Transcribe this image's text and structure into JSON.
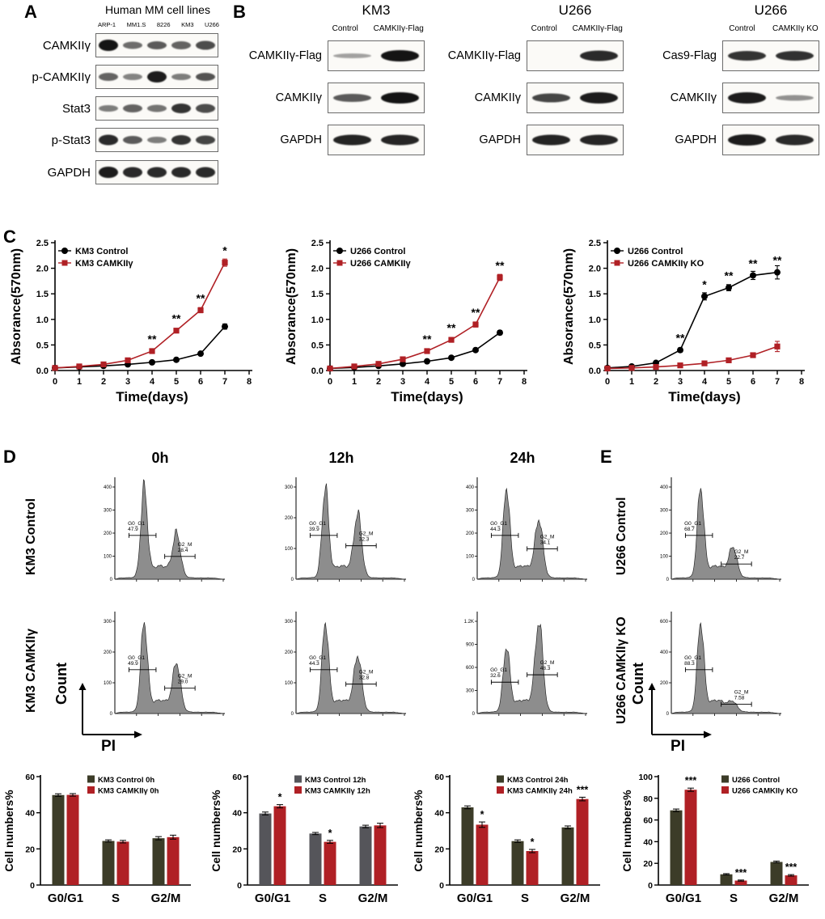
{
  "figure": {
    "panel_a": {
      "label": "A",
      "title": "Human MM cell lines",
      "lanes": [
        "ARP-1",
        "MM1.S",
        "8226",
        "KM3",
        "U266"
      ],
      "rows": [
        {
          "name": "CAMKIIγ",
          "bands": [
            1.0,
            0.45,
            0.55,
            0.5,
            0.65
          ]
        },
        {
          "name": "p-CAMKIIγ",
          "bands": [
            0.5,
            0.3,
            0.95,
            0.35,
            0.6
          ]
        },
        {
          "name": "Stat3",
          "bands": [
            0.35,
            0.5,
            0.4,
            0.8,
            0.65
          ]
        },
        {
          "name": "p-Stat3",
          "bands": [
            0.85,
            0.55,
            0.35,
            0.8,
            0.7
          ]
        },
        {
          "name": "GAPDH",
          "bands": [
            0.95,
            0.85,
            0.85,
            0.85,
            0.85
          ]
        }
      ]
    },
    "panel_b": {
      "label": "B",
      "groups": [
        {
          "title": "KM3",
          "lanes": [
            "Control",
            "CAMKIIγ-Flag"
          ],
          "rows": [
            {
              "name": "CAMKIIγ-Flag",
              "bands": [
                0.12,
                1.0
              ]
            },
            {
              "name": "CAMKIIγ",
              "bands": [
                0.55,
                1.0
              ]
            },
            {
              "name": "GAPDH",
              "bands": [
                0.9,
                0.88
              ]
            }
          ]
        },
        {
          "title": "U266",
          "lanes": [
            "Control",
            "CAMKIIγ-Flag"
          ],
          "rows": [
            {
              "name": "CAMKIIγ-Flag",
              "bands": [
                0,
                0.85
              ]
            },
            {
              "name": "CAMKIIγ",
              "bands": [
                0.68,
                0.95
              ]
            },
            {
              "name": "GAPDH",
              "bands": [
                0.9,
                0.88
              ]
            }
          ]
        },
        {
          "title": "U266",
          "lanes": [
            "Control",
            "CAMKIIγ KO"
          ],
          "rows": [
            {
              "name": "Cas9-Flag",
              "bands": [
                0.8,
                0.82
              ]
            },
            {
              "name": "CAMKIIγ",
              "bands": [
                0.95,
                0.22
              ]
            },
            {
              "name": "GAPDH",
              "bands": [
                0.95,
                0.85
              ]
            }
          ]
        }
      ]
    },
    "panel_c": {
      "label": "C"
    },
    "panel_d": {
      "label": "D",
      "col_headers": [
        "0h",
        "12h",
        "24h"
      ],
      "row_labels": [
        "KM3 Control",
        "KM3 CAMKIIγ"
      ],
      "count_label": "Count",
      "pi_label": "PI",
      "gate_g1": "G0_G1",
      "gate_g2": "G2_M",
      "plots": [
        [
          {
            "g1": "47.9",
            "g2": "28.4",
            "g1h": 0.95,
            "g2h": 0.45,
            "yt": [
              "100",
              "200",
              "300",
              "400"
            ]
          },
          {
            "g1": "39.9",
            "g2": "32.3",
            "g1h": 0.95,
            "g2h": 0.66,
            "yt": [
              "100",
              "200",
              "300"
            ]
          },
          {
            "g1": "44.3",
            "g2": "34.1",
            "g1h": 0.95,
            "g2h": 0.6,
            "yt": [
              "100",
              "200",
              "300",
              "400"
            ]
          }
        ],
        [
          {
            "g1": "49.9",
            "g2": "29.0",
            "g1h": 0.95,
            "g2h": 0.5,
            "yt": [
              "100",
              "200",
              "300"
            ]
          },
          {
            "g1": "44.3",
            "g2": "32.8",
            "g1h": 0.95,
            "g2h": 0.58,
            "yt": [
              "100",
              "200",
              "300"
            ]
          },
          {
            "g1": "32.6",
            "g2": "48.3",
            "g1h": 0.68,
            "g2h": 0.95,
            "yt": [
              "300",
              "600",
              "900",
              "1.2K"
            ]
          }
        ]
      ]
    },
    "panel_e": {
      "label": "E",
      "row_labels": [
        "U266 Control",
        "U266 CAMKIIγ KO"
      ],
      "count_label": "Count",
      "pi_label": "PI",
      "gate_g1": "G0_G1",
      "gate_g2": "G2_M",
      "plots": [
        {
          "g1": "68.7",
          "g2": "22.7",
          "g1h": 0.95,
          "g2h": 0.3,
          "yt": [
            "100",
            "200",
            "300",
            "400"
          ]
        },
        {
          "g1": "88.3",
          "g2": "7.58",
          "g1h": 0.95,
          "g2h": 0.08,
          "yt": [
            "200",
            "400",
            "600"
          ]
        }
      ]
    }
  },
  "chart_data": [
    {
      "type": "line",
      "name": "km3-growth",
      "ylabel": "Absorance(570nm)",
      "xlabel": "Time(days)",
      "ylim": [
        0,
        2.5
      ],
      "yticks": [
        0,
        0.5,
        1,
        1.5,
        2,
        2.5
      ],
      "xlim": [
        0,
        8
      ],
      "xticks": [
        0,
        1,
        2,
        3,
        4,
        5,
        6,
        7,
        8
      ],
      "x": [
        0,
        1,
        2,
        3,
        4,
        5,
        6,
        7
      ],
      "series": [
        {
          "name": "KM3 Control",
          "color": "#000000",
          "marker": "circle",
          "values": [
            0.05,
            0.07,
            0.09,
            0.12,
            0.16,
            0.21,
            0.33,
            0.86
          ],
          "err": [
            0,
            0,
            0,
            0,
            0.02,
            0.02,
            0.03,
            0.05
          ]
        },
        {
          "name": "KM3 CAMKIIγ",
          "color": "#b02025",
          "marker": "square",
          "values": [
            0.05,
            0.08,
            0.12,
            0.2,
            0.38,
            0.78,
            1.18,
            2.11
          ],
          "err": [
            0,
            0,
            0,
            0.02,
            0.03,
            0.04,
            0.05,
            0.07
          ]
        }
      ],
      "sig": [
        {
          "x": 4,
          "s": "**"
        },
        {
          "x": 5,
          "s": "**"
        },
        {
          "x": 6,
          "s": "**"
        },
        {
          "x": 7,
          "s": "*"
        }
      ]
    },
    {
      "type": "line",
      "name": "u266-growth",
      "ylabel": "Absorance(570nm)",
      "xlabel": "Time(days)",
      "ylim": [
        0,
        2.5
      ],
      "yticks": [
        0,
        0.5,
        1,
        1.5,
        2,
        2.5
      ],
      "xlim": [
        0,
        8
      ],
      "xticks": [
        0,
        1,
        2,
        3,
        4,
        5,
        6,
        7,
        8
      ],
      "x": [
        0,
        1,
        2,
        3,
        4,
        5,
        6,
        7
      ],
      "series": [
        {
          "name": "U266 Control",
          "color": "#000000",
          "marker": "circle",
          "values": [
            0.04,
            0.06,
            0.09,
            0.13,
            0.18,
            0.25,
            0.4,
            0.74
          ],
          "err": [
            0,
            0,
            0,
            0,
            0.02,
            0.02,
            0.03,
            0.04
          ]
        },
        {
          "name": "U266 CAMKIIγ",
          "color": "#b02025",
          "marker": "square",
          "values": [
            0.04,
            0.08,
            0.13,
            0.22,
            0.38,
            0.6,
            0.9,
            1.82
          ],
          "err": [
            0,
            0,
            0,
            0.02,
            0.03,
            0.04,
            0.05,
            0.06
          ]
        }
      ],
      "sig": [
        {
          "x": 4,
          "s": "**"
        },
        {
          "x": 5,
          "s": "**"
        },
        {
          "x": 6,
          "s": "**"
        },
        {
          "x": 7,
          "s": "**"
        }
      ]
    },
    {
      "type": "line",
      "name": "u266-ko-growth",
      "ylabel": "Absorance(570nm)",
      "xlabel": "Time(days)",
      "ylim": [
        0,
        2.5
      ],
      "yticks": [
        0,
        0.5,
        1,
        1.5,
        2,
        2.5
      ],
      "xlim": [
        0,
        8
      ],
      "xticks": [
        0,
        1,
        2,
        3,
        4,
        5,
        6,
        7,
        8
      ],
      "x": [
        0,
        1,
        2,
        3,
        4,
        5,
        6,
        7
      ],
      "series": [
        {
          "name": "U266 Control",
          "color": "#000000",
          "marker": "circle",
          "values": [
            0.05,
            0.08,
            0.15,
            0.4,
            1.45,
            1.62,
            1.86,
            1.92
          ],
          "err": [
            0,
            0,
            0.02,
            0.04,
            0.07,
            0.06,
            0.08,
            0.13
          ]
        },
        {
          "name": "U266 CAMKIIγ  KO",
          "color": "#b02025",
          "marker": "square",
          "values": [
            0.04,
            0.05,
            0.07,
            0.1,
            0.14,
            0.2,
            0.3,
            0.47
          ],
          "err": [
            0,
            0,
            0,
            0,
            0.02,
            0.03,
            0.04,
            0.1
          ]
        }
      ],
      "sig": [
        {
          "x": 3,
          "s": "**"
        },
        {
          "x": 4,
          "s": "*"
        },
        {
          "x": 5,
          "s": "**"
        },
        {
          "x": 6,
          "s": "**"
        },
        {
          "x": 7,
          "s": "**"
        }
      ]
    },
    {
      "type": "bar",
      "name": "km3-cellcycle-0h",
      "ylabel": "Cell numbers%",
      "categories": [
        "G0/G1",
        "S",
        "G2/M"
      ],
      "ylim": [
        0,
        60
      ],
      "yticks": [
        0,
        20,
        40,
        60
      ],
      "series": [
        {
          "name": "KM3 Control 0h",
          "color": "#3c3c28",
          "values": [
            49.8,
            24.4,
            25.9
          ],
          "err": [
            0.7,
            0.6,
            0.9
          ],
          "sig": [
            "",
            "",
            ""
          ]
        },
        {
          "name": "KM3 CAMKIIγ 0h",
          "color": "#b02025",
          "values": [
            49.9,
            24.0,
            26.5
          ],
          "err": [
            0.7,
            0.7,
            1.1
          ],
          "sig": [
            "",
            "",
            ""
          ]
        }
      ]
    },
    {
      "type": "bar",
      "name": "km3-cellcycle-12h",
      "ylabel": "Cell numbers%",
      "categories": [
        "G0/G1",
        "S",
        "G2/M"
      ],
      "ylim": [
        0,
        60
      ],
      "yticks": [
        0,
        20,
        40,
        60
      ],
      "series": [
        {
          "name": "KM3 Control 12h",
          "color": "#55555a",
          "values": [
            39.6,
            28.5,
            32.4
          ],
          "err": [
            0.8,
            0.6,
            0.7
          ],
          "sig": [
            "",
            "",
            ""
          ]
        },
        {
          "name": "KM3 CAMKIIγ 12h",
          "color": "#b02025",
          "values": [
            43.6,
            23.9,
            33.0
          ],
          "err": [
            0.9,
            0.8,
            1.2
          ],
          "sig": [
            "*",
            "*",
            ""
          ]
        }
      ]
    },
    {
      "type": "bar",
      "name": "km3-cellcycle-24h",
      "ylabel": "Cell numbers%",
      "categories": [
        "G0/G1",
        "S",
        "G2/M"
      ],
      "ylim": [
        0,
        60
      ],
      "yticks": [
        0,
        20,
        40,
        60
      ],
      "series": [
        {
          "name": "KM3 Control 24h",
          "color": "#3c3c28",
          "values": [
            43.0,
            24.3,
            31.9
          ],
          "err": [
            0.8,
            0.7,
            0.8
          ],
          "sig": [
            "",
            "",
            ""
          ]
        },
        {
          "name": "KM3 CAMKIIγ 24h",
          "color": "#b02025",
          "values": [
            33.4,
            18.8,
            47.6
          ],
          "err": [
            1.5,
            0.9,
            1.0
          ],
          "sig": [
            "*",
            "*",
            "***"
          ]
        }
      ]
    },
    {
      "type": "bar",
      "name": "u266-cellcycle",
      "ylabel": "Cell numbers%",
      "categories": [
        "G0/G1",
        "S",
        "G2/M"
      ],
      "ylim": [
        0,
        100
      ],
      "yticks": [
        0,
        20,
        40,
        60,
        80,
        100
      ],
      "legend_dx": 78,
      "series": [
        {
          "name": "U266 Control",
          "color": "#3c3c28",
          "values": [
            68.9,
            9.9,
            21.3
          ],
          "err": [
            1.2,
            0.6,
            0.8
          ],
          "sig": [
            "",
            "",
            ""
          ]
        },
        {
          "name": "U266 CAMKIIγ  KO",
          "color": "#b02025",
          "values": [
            87.9,
            4.1,
            8.9
          ],
          "err": [
            1.5,
            0.5,
            0.7
          ],
          "sig": [
            "***",
            "***",
            "***"
          ]
        }
      ]
    }
  ]
}
